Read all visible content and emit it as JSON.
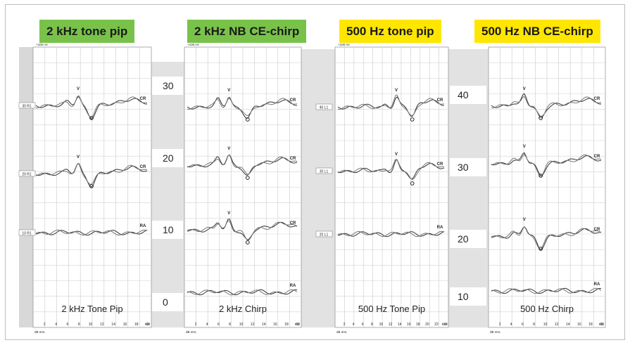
{
  "banners": [
    {
      "label": "2 kHz tone pip",
      "color": "#79c24a"
    },
    {
      "label": "2 kHz NB CE-chirp",
      "color": "#79c24a"
    },
    {
      "label": "500 Hz tone pip",
      "color": "#ffe600"
    },
    {
      "label": "500 Hz NB CE-chirp",
      "color": "#ffe600"
    }
  ],
  "chart_data": [
    {
      "type": "line",
      "title": "2 kHz Tone Pip",
      "xlabel": "ms",
      "x_ticks": [
        "2",
        "4",
        "6",
        "8",
        "10",
        "12",
        "14",
        "16",
        "18",
        "20"
      ],
      "x_unit_label": "ms",
      "y_unit_label": "dB nHL",
      "scale_label": "+100 nV",
      "level_labels": [
        "30 R1",
        "20 R1",
        "10 R1"
      ],
      "trace_annotations": [
        [
          "V",
          "CR"
        ],
        [
          "V",
          "CR"
        ],
        [
          "RA"
        ]
      ]
    },
    {
      "type": "line",
      "title": "2 kHz Chirp",
      "xlabel": "ms",
      "x_ticks": [
        "2",
        "4",
        "6",
        "8",
        "10",
        "12",
        "14",
        "16",
        "18",
        "20"
      ],
      "x_unit_label": "ms",
      "y_unit_label": "dB nHL",
      "scale_label": "+100 nV",
      "level_axis_ticks": [
        "30",
        "20",
        "10",
        "0"
      ],
      "trace_annotations": [
        [
          "V",
          "CR"
        ],
        [
          "V",
          "CR"
        ],
        [
          "V",
          "CR"
        ],
        [
          "RA"
        ]
      ]
    },
    {
      "type": "line",
      "title": "500 Hz Tone Pip",
      "xlabel": "ms",
      "x_ticks": [
        "2",
        "4",
        "6",
        "8",
        "10",
        "12",
        "14",
        "16",
        "18",
        "20",
        "22",
        "24"
      ],
      "x_unit_label": "ms",
      "y_unit_label": "dB nHL",
      "scale_label": "+100 nV",
      "level_labels": [
        "40 L1",
        "30 L1",
        "20 L1"
      ],
      "trace_annotations": [
        [
          "V",
          "CR"
        ],
        [
          "V",
          "CR"
        ],
        [
          "RA"
        ]
      ]
    },
    {
      "type": "line",
      "title": "500 Hz Chirp",
      "xlabel": "ms",
      "x_ticks": [
        "2",
        "4",
        "6",
        "8",
        "10",
        "12",
        "14",
        "16",
        "18",
        "20"
      ],
      "x_unit_label": "ms",
      "y_unit_label": "dB nHL",
      "level_axis_ticks": [
        "40",
        "30",
        "20",
        "10"
      ],
      "trace_annotations": [
        [
          "V",
          "CR"
        ],
        [
          "V",
          "CR"
        ],
        [
          "V",
          "CR"
        ],
        [
          "RA"
        ]
      ]
    }
  ]
}
